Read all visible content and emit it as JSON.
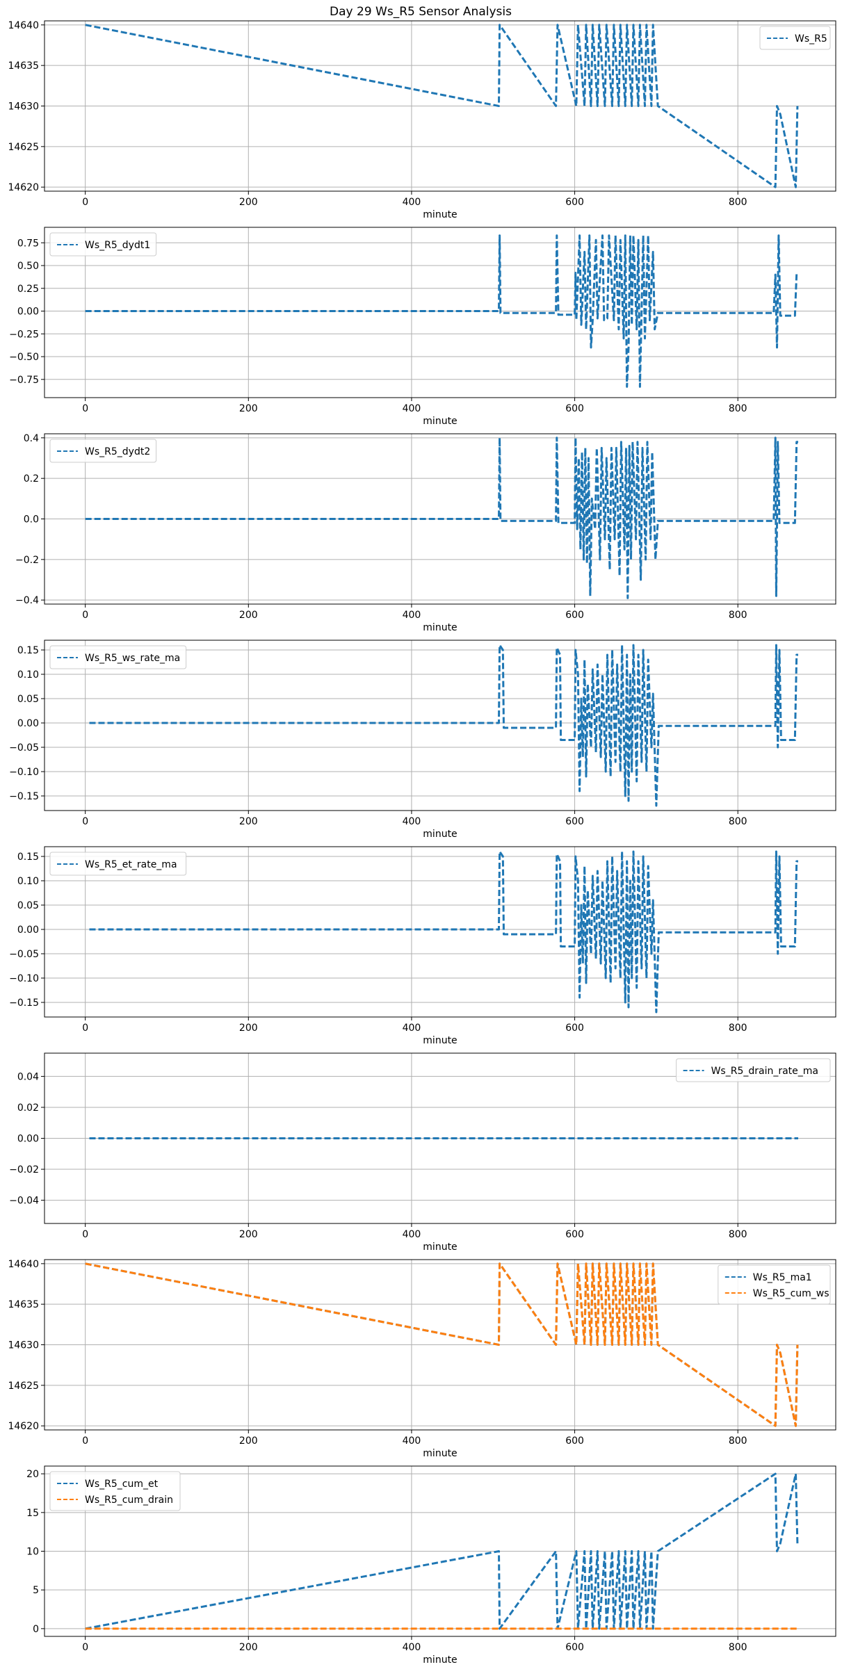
{
  "figure": {
    "title": "Day 29 Ws_R5 Sensor Analysis"
  },
  "chart_data": [
    {
      "type": "line",
      "xlabel": "minute",
      "ylabel": "",
      "xlim": [
        -50,
        920
      ],
      "ylim": [
        14619.5,
        14640.5
      ],
      "xticks": [
        0,
        200,
        400,
        600,
        800
      ],
      "yticks": [
        14620,
        14625,
        14630,
        14635,
        14640
      ],
      "ytick_labels": [
        "14620",
        "14625",
        "14630",
        "14635",
        "14640"
      ],
      "grid": true,
      "legend": "top-right",
      "series": [
        {
          "name": "Ws_R5",
          "color": "#1f77b4",
          "style": "dashed",
          "x": [
            0,
            507,
            508,
            577,
            579,
            602,
            604,
            612,
            614,
            620,
            622,
            628,
            630,
            637,
            639,
            646,
            648,
            654,
            656,
            662,
            664,
            670,
            672,
            678,
            680,
            686,
            688,
            694,
            696,
            702,
            846,
            848,
            852,
            871,
            873
          ],
          "y": [
            14640,
            14630,
            14640,
            14630,
            14640,
            14630,
            14640,
            14630,
            14640,
            14630,
            14640,
            14630,
            14640,
            14630,
            14640,
            14630,
            14640,
            14630,
            14640,
            14630,
            14640,
            14630,
            14640,
            14630,
            14640,
            14630,
            14640,
            14630,
            14640,
            14630,
            14620,
            14630,
            14629,
            14620,
            14630
          ]
        }
      ]
    },
    {
      "type": "line",
      "xlabel": "minute",
      "ylabel": "",
      "xlim": [
        -50,
        920
      ],
      "ylim": [
        -0.95,
        0.92
      ],
      "xticks": [
        0,
        200,
        400,
        600,
        800
      ],
      "yticks": [
        -0.75,
        -0.5,
        -0.25,
        0.0,
        0.25,
        0.5,
        0.75
      ],
      "ytick_labels": [
        "−0.75",
        "−0.50",
        "−0.25",
        "0.00",
        "0.25",
        "0.50",
        "0.75"
      ],
      "grid": true,
      "legend": "top-left",
      "series": [
        {
          "name": "Ws_R5_dydt1",
          "color": "#1f77b4",
          "style": "dashed",
          "x": [
            0,
            507,
            508,
            509,
            510,
            577,
            578,
            580,
            600,
            601,
            602,
            606,
            608,
            612,
            614,
            618,
            620,
            622,
            626,
            628,
            634,
            636,
            640,
            642,
            648,
            650,
            654,
            656,
            660,
            662,
            664,
            666,
            668,
            670,
            672,
            676,
            678,
            680,
            684,
            686,
            690,
            692,
            696,
            698,
            702,
            844,
            846,
            848,
            850,
            852,
            870,
            872,
            874
          ],
          "y": [
            0,
            0,
            0.83,
            -0.02,
            -0.02,
            -0.02,
            0.83,
            -0.04,
            -0.04,
            0.42,
            -0.1,
            0.83,
            -0.15,
            0.65,
            -0.2,
            0.83,
            -0.4,
            -0.1,
            0.78,
            -0.08,
            0.83,
            -0.1,
            -0.08,
            0.83,
            -0.1,
            0.83,
            -0.2,
            0.78,
            -0.3,
            0.83,
            -0.83,
            -0.4,
            0.83,
            -0.15,
            0.83,
            -0.2,
            0.78,
            -0.83,
            0.83,
            -0.3,
            0.83,
            -0.1,
            0.65,
            -0.2,
            -0.02,
            -0.02,
            0.4,
            -0.4,
            0.83,
            -0.05,
            -0.05,
            0.41,
            0.41
          ]
        }
      ]
    },
    {
      "type": "line",
      "xlabel": "minute",
      "ylabel": "",
      "xlim": [
        -50,
        920
      ],
      "ylim": [
        -0.42,
        0.42
      ],
      "xticks": [
        0,
        200,
        400,
        600,
        800
      ],
      "yticks": [
        -0.4,
        -0.2,
        0.0,
        0.2,
        0.4
      ],
      "ytick_labels": [
        "−0.4",
        "−0.2",
        "0.0",
        "0.2",
        "0.4"
      ],
      "grid": true,
      "legend": "top-left",
      "series": [
        {
          "name": "Ws_R5_dydt2",
          "color": "#1f77b4",
          "style": "dashed",
          "x": [
            0,
            507,
            508,
            509,
            510,
            577,
            578,
            580,
            600,
            601,
            603,
            605,
            607,
            609,
            611,
            613,
            615,
            617,
            619,
            621,
            625,
            627,
            631,
            633,
            637,
            639,
            643,
            645,
            649,
            651,
            655,
            657,
            661,
            663,
            665,
            667,
            669,
            671,
            675,
            677,
            681,
            683,
            687,
            689,
            693,
            695,
            699,
            702,
            844,
            846,
            847,
            849,
            851,
            870,
            872,
            874
          ],
          "y": [
            0,
            0,
            0.4,
            -0.01,
            -0.01,
            -0.01,
            0.4,
            -0.02,
            -0.02,
            0.4,
            -0.05,
            0.3,
            -0.15,
            0.33,
            -0.2,
            0.35,
            -0.22,
            0.3,
            -0.38,
            0.1,
            -0.05,
            0.35,
            -0.2,
            0.35,
            -0.1,
            0.3,
            -0.25,
            0.35,
            -0.1,
            0.35,
            -0.28,
            0.38,
            -0.15,
            0.35,
            -0.39,
            0.36,
            -0.2,
            0.38,
            -0.1,
            0.38,
            -0.3,
            0.35,
            -0.2,
            0.38,
            -0.1,
            0.33,
            -0.2,
            -0.01,
            -0.01,
            0.4,
            -0.38,
            0.38,
            -0.02,
            -0.02,
            0.38,
            0.38
          ]
        }
      ]
    },
    {
      "type": "line",
      "xlabel": "minute",
      "ylabel": "",
      "xlim": [
        -50,
        920
      ],
      "ylim": [
        -0.18,
        0.17
      ],
      "xticks": [
        0,
        200,
        400,
        600,
        800
      ],
      "yticks": [
        -0.15,
        -0.1,
        -0.05,
        0.0,
        0.05,
        0.1,
        0.15
      ],
      "ytick_labels": [
        "−0.15",
        "−0.10",
        "−0.05",
        "0.00",
        "0.05",
        "0.10",
        "0.15"
      ],
      "grid": true,
      "legend": "top-left",
      "series": [
        {
          "name": "Ws_R5_ws_rate_ma",
          "color": "#1f77b4",
          "style": "dashed",
          "x": [
            5,
            507,
            508,
            512,
            513,
            577,
            578,
            582,
            583,
            600,
            601,
            604,
            606,
            608,
            610,
            612,
            614,
            616,
            620,
            622,
            626,
            628,
            632,
            634,
            638,
            640,
            644,
            646,
            650,
            652,
            656,
            658,
            662,
            664,
            666,
            668,
            670,
            672,
            676,
            678,
            682,
            684,
            688,
            690,
            694,
            696,
            700,
            703,
            846,
            847,
            849,
            851,
            853,
            870,
            872,
            874
          ],
          "y": [
            0,
            0,
            0.16,
            0.15,
            -0.01,
            -0.01,
            0.155,
            0.14,
            -0.035,
            -0.035,
            0.15,
            0.1,
            -0.14,
            0.05,
            -0.07,
            0.13,
            -0.11,
            0.08,
            -0.05,
            0.11,
            -0.06,
            0.12,
            -0.07,
            0.1,
            -0.1,
            0.14,
            -0.11,
            0.15,
            -0.08,
            0.12,
            -0.1,
            0.16,
            -0.15,
            0.14,
            -0.16,
            0.1,
            -0.1,
            0.16,
            -0.12,
            0.14,
            -0.08,
            0.15,
            -0.1,
            0.13,
            -0.05,
            0.06,
            -0.17,
            -0.006,
            -0.006,
            0.16,
            -0.05,
            0.15,
            -0.035,
            -0.035,
            0.14,
            0.14
          ]
        }
      ]
    },
    {
      "type": "line",
      "xlabel": "minute",
      "ylabel": "",
      "xlim": [
        -50,
        920
      ],
      "ylim": [
        -0.18,
        0.17
      ],
      "xticks": [
        0,
        200,
        400,
        600,
        800
      ],
      "yticks": [
        -0.15,
        -0.1,
        -0.05,
        0.0,
        0.05,
        0.1,
        0.15
      ],
      "ytick_labels": [
        "−0.15",
        "−0.10",
        "−0.05",
        "0.00",
        "0.05",
        "0.10",
        "0.15"
      ],
      "grid": true,
      "legend": "top-left",
      "series": [
        {
          "name": "Ws_R5_et_rate_ma",
          "color": "#1f77b4",
          "style": "dashed",
          "x": [
            5,
            507,
            508,
            512,
            513,
            577,
            578,
            582,
            583,
            600,
            601,
            604,
            606,
            608,
            610,
            612,
            614,
            616,
            620,
            622,
            626,
            628,
            632,
            634,
            638,
            640,
            644,
            646,
            650,
            652,
            656,
            658,
            662,
            664,
            666,
            668,
            670,
            672,
            676,
            678,
            682,
            684,
            688,
            690,
            694,
            696,
            700,
            703,
            846,
            847,
            849,
            851,
            853,
            870,
            872,
            874
          ],
          "y": [
            0,
            0,
            0.16,
            0.15,
            -0.01,
            -0.01,
            0.155,
            0.14,
            -0.035,
            -0.035,
            0.15,
            0.1,
            -0.14,
            0.05,
            -0.07,
            0.13,
            -0.11,
            0.08,
            -0.05,
            0.11,
            -0.06,
            0.12,
            -0.07,
            0.1,
            -0.1,
            0.14,
            -0.11,
            0.15,
            -0.08,
            0.12,
            -0.1,
            0.16,
            -0.15,
            0.14,
            -0.16,
            0.1,
            -0.1,
            0.16,
            -0.12,
            0.14,
            -0.08,
            0.15,
            -0.1,
            0.13,
            -0.05,
            0.06,
            -0.17,
            -0.006,
            -0.006,
            0.16,
            -0.05,
            0.15,
            -0.035,
            -0.035,
            0.14,
            0.14
          ]
        }
      ]
    },
    {
      "type": "line",
      "xlabel": "minute",
      "ylabel": "",
      "xlim": [
        -50,
        920
      ],
      "ylim": [
        -0.055,
        0.055
      ],
      "xticks": [
        0,
        200,
        400,
        600,
        800
      ],
      "yticks": [
        -0.04,
        -0.02,
        0.0,
        0.02,
        0.04
      ],
      "ytick_labels": [
        "−0.04",
        "−0.02",
        "0.00",
        "0.02",
        "0.04"
      ],
      "grid": true,
      "legend": "top-right",
      "series": [
        {
          "name": "Ws_R5_drain_rate_ma",
          "color": "#1f77b4",
          "style": "dashed",
          "x": [
            5,
            874
          ],
          "y": [
            0,
            0
          ]
        }
      ]
    },
    {
      "type": "line",
      "xlabel": "minute",
      "ylabel": "",
      "xlim": [
        -50,
        920
      ],
      "ylim": [
        14619.5,
        14640.5
      ],
      "xticks": [
        0,
        200,
        400,
        600,
        800
      ],
      "yticks": [
        14620,
        14625,
        14630,
        14635,
        14640
      ],
      "ytick_labels": [
        "14620",
        "14625",
        "14630",
        "14635",
        "14640"
      ],
      "grid": true,
      "legend": "top-right",
      "series": [
        {
          "name": "Ws_R5_ma1",
          "color": "#1f77b4",
          "style": "dashed",
          "x": [
            0,
            507,
            508,
            577,
            579,
            602,
            604,
            612,
            614,
            620,
            622,
            628,
            630,
            637,
            639,
            646,
            648,
            654,
            656,
            662,
            664,
            670,
            672,
            678,
            680,
            686,
            688,
            694,
            696,
            702,
            846,
            848,
            852,
            871,
            873
          ],
          "y": [
            14640,
            14630,
            14640,
            14630,
            14640,
            14630,
            14640,
            14630,
            14640,
            14630,
            14640,
            14630,
            14640,
            14630,
            14640,
            14630,
            14640,
            14630,
            14640,
            14630,
            14640,
            14630,
            14640,
            14630,
            14640,
            14630,
            14640,
            14630,
            14640,
            14630,
            14620,
            14630,
            14629,
            14620,
            14630
          ]
        },
        {
          "name": "Ws_R5_cum_ws",
          "color": "#ff7f0e",
          "style": "dashed",
          "x": [
            0,
            507,
            508,
            577,
            579,
            602,
            604,
            612,
            614,
            620,
            622,
            628,
            630,
            637,
            639,
            646,
            648,
            654,
            656,
            662,
            664,
            670,
            672,
            678,
            680,
            686,
            688,
            694,
            696,
            702,
            846,
            848,
            852,
            871,
            873
          ],
          "y": [
            14640,
            14630,
            14640,
            14630,
            14640,
            14630,
            14640,
            14630,
            14640,
            14630,
            14640,
            14630,
            14640,
            14630,
            14640,
            14630,
            14640,
            14630,
            14640,
            14630,
            14640,
            14630,
            14640,
            14630,
            14640,
            14630,
            14640,
            14630,
            14640,
            14630,
            14620,
            14630,
            14629,
            14620,
            14630
          ]
        }
      ]
    },
    {
      "type": "line",
      "xlabel": "minute",
      "ylabel": "",
      "xlim": [
        -50,
        920
      ],
      "ylim": [
        -1,
        21
      ],
      "xticks": [
        0,
        200,
        400,
        600,
        800
      ],
      "yticks": [
        0,
        5,
        10,
        15,
        20
      ],
      "ytick_labels": [
        "0",
        "5",
        "10",
        "15",
        "20"
      ],
      "grid": true,
      "legend": "top-left",
      "series": [
        {
          "name": "Ws_R5_cum_et",
          "color": "#1f77b4",
          "style": "dashed",
          "x": [
            0,
            507,
            508,
            577,
            579,
            602,
            604,
            612,
            614,
            620,
            622,
            628,
            630,
            637,
            639,
            646,
            648,
            654,
            656,
            662,
            664,
            670,
            672,
            678,
            680,
            686,
            688,
            694,
            696,
            702,
            846,
            848,
            852,
            871,
            873
          ],
          "y": [
            0,
            10,
            0,
            10,
            0,
            10,
            0,
            10,
            0,
            10,
            0,
            10,
            0,
            10,
            0,
            10,
            0,
            10,
            0,
            10,
            0,
            10,
            0,
            10,
            0,
            10,
            0,
            10,
            0,
            10,
            20,
            10,
            11,
            20,
            11
          ]
        },
        {
          "name": "Ws_R5_cum_drain",
          "color": "#ff7f0e",
          "style": "dashed",
          "x": [
            0,
            874
          ],
          "y": [
            0,
            0
          ]
        }
      ]
    }
  ]
}
